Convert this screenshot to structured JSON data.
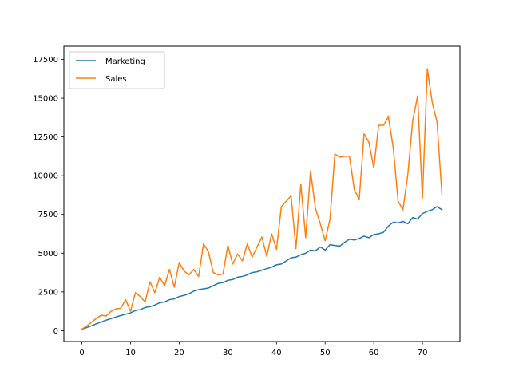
{
  "chart_data": {
    "type": "line",
    "title": "",
    "xlabel": "",
    "ylabel": "",
    "xlim": [
      -3.7,
      77.7
    ],
    "ylim": [
      -700,
      18350
    ],
    "x_ticks": [
      0,
      10,
      20,
      30,
      40,
      50,
      60,
      70
    ],
    "x_tick_labels": [
      "0",
      "10",
      "20",
      "30",
      "40",
      "50",
      "60",
      "70"
    ],
    "y_ticks": [
      0,
      2500,
      5000,
      7500,
      10000,
      12500,
      15000,
      17500
    ],
    "y_tick_labels": [
      "0",
      "2500",
      "5000",
      "7500",
      "10000",
      "12500",
      "15000",
      "17500"
    ],
    "grid": false,
    "legend_position": "top-left",
    "x": [
      0,
      1,
      2,
      3,
      4,
      5,
      6,
      7,
      8,
      9,
      10,
      11,
      12,
      13,
      14,
      15,
      16,
      17,
      18,
      19,
      20,
      21,
      22,
      23,
      24,
      25,
      26,
      27,
      28,
      29,
      30,
      31,
      32,
      33,
      34,
      35,
      36,
      37,
      38,
      39,
      40,
      41,
      42,
      43,
      44,
      45,
      46,
      47,
      48,
      49,
      50,
      51,
      52,
      53,
      54,
      55,
      56,
      57,
      58,
      59,
      60,
      61,
      62,
      63,
      64,
      65,
      66,
      67,
      68,
      69,
      70,
      71,
      72,
      73,
      74
    ],
    "series": [
      {
        "name": "Marketing",
        "color": "#1f77b4",
        "values": [
          100,
          200,
          320,
          450,
          560,
          680,
          780,
          880,
          980,
          1060,
          1150,
          1300,
          1350,
          1500,
          1550,
          1650,
          1800,
          1850,
          2000,
          2050,
          2200,
          2280,
          2380,
          2550,
          2650,
          2700,
          2750,
          2900,
          3050,
          3100,
          3250,
          3300,
          3450,
          3500,
          3600,
          3750,
          3800,
          3900,
          4000,
          4100,
          4250,
          4300,
          4500,
          4700,
          4750,
          4900,
          5000,
          5200,
          5150,
          5400,
          5200,
          5550,
          5500,
          5450,
          5700,
          5900,
          5850,
          5950,
          6100,
          6000,
          6200,
          6250,
          6350,
          6750,
          7000,
          6950,
          7050,
          6900,
          7300,
          7200,
          7550,
          7700,
          7800,
          8000,
          7800
        ]
      },
      {
        "name": "Sales",
        "color": "#ff7f0e",
        "values": [
          100,
          300,
          550,
          800,
          1000,
          950,
          1250,
          1400,
          1450,
          2000,
          1250,
          2450,
          2200,
          1850,
          3150,
          2450,
          3450,
          2900,
          3950,
          2800,
          4400,
          3850,
          3600,
          3950,
          3500,
          5600,
          5100,
          3750,
          3600,
          3650,
          5500,
          4300,
          4950,
          4500,
          5600,
          4750,
          5400,
          6050,
          4800,
          6250,
          5250,
          8000,
          8350,
          8700,
          5300,
          9450,
          6000,
          10300,
          7900,
          6900,
          5800,
          7200,
          11400,
          11200,
          11250,
          11250,
          9100,
          8450,
          12700,
          12150,
          10500,
          13250,
          13250,
          13800,
          11800,
          8350,
          7800,
          10100,
          13550,
          15150,
          8550,
          16900,
          14750,
          13450,
          8800
        ]
      }
    ]
  }
}
